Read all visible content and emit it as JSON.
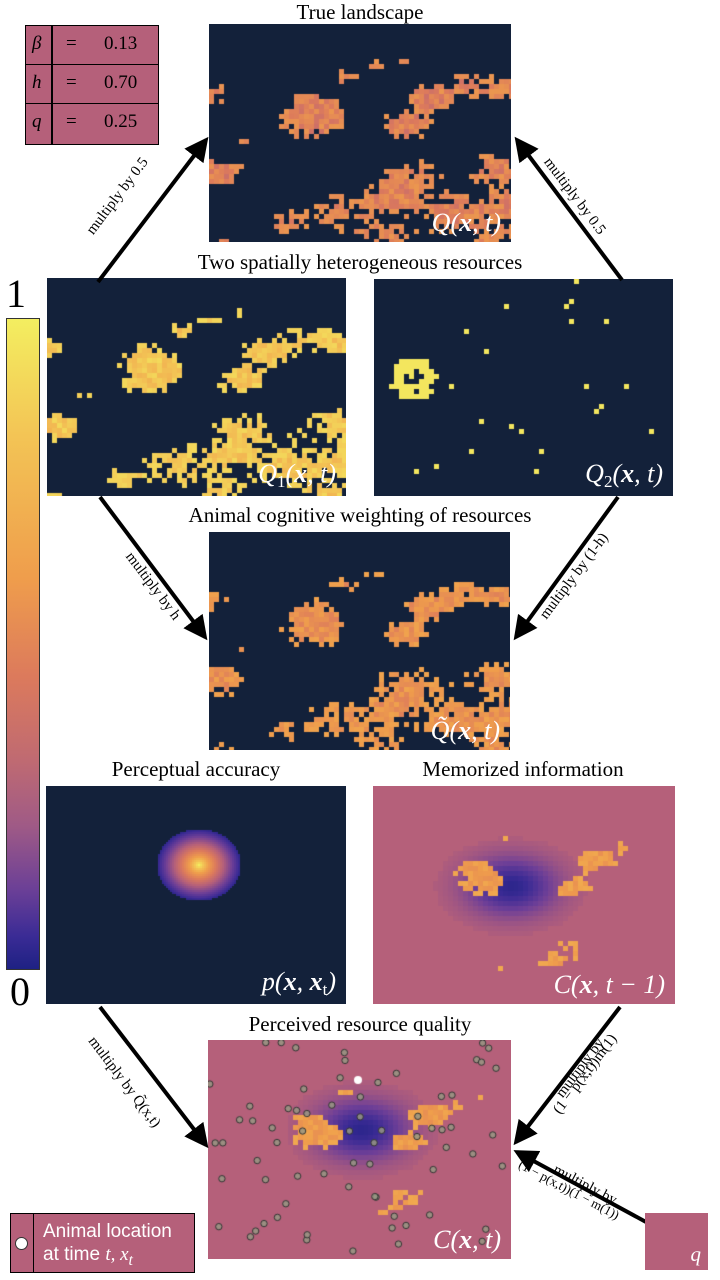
{
  "params": [
    {
      "symbol": "β",
      "eq": "=",
      "value": "0.13"
    },
    {
      "symbol": "h",
      "eq": "=",
      "value": "0.70"
    },
    {
      "symbol": "q",
      "eq": "=",
      "value": "0.25"
    }
  ],
  "titles": {
    "true_landscape": "True landscape",
    "two_resources": "Two spatially heterogeneous resources",
    "cognitive": "Animal cognitive weighting of resources",
    "perceptual": "Perceptual accuracy",
    "memorized": "Memorized information",
    "perceived": "Perceived resource quality"
  },
  "panel_labels": {
    "Q": {
      "main": "Q(",
      "bold": "x",
      "rest": ", t)"
    },
    "Q1": {
      "main": "Q",
      "sub": "1",
      "open": "(",
      "bold": "x",
      "rest": ", t)"
    },
    "Q2": {
      "main": "Q",
      "sub": "2",
      "open": "(",
      "bold": "x",
      "rest": ", t)"
    },
    "Qtilde": {
      "main": "Q̃(",
      "bold": "x",
      "rest": ", t)"
    },
    "p": {
      "main": "p(",
      "bold": "x",
      "mid": ", ",
      "bold2": "x",
      "sub": "t",
      "rest": ")"
    },
    "Cprev": {
      "main": "C(",
      "bold": "x",
      "rest": ", t − 1)"
    },
    "C": {
      "main": "C(",
      "bold": "x",
      "rest": ", t)"
    }
  },
  "arrow_labels": {
    "left_top": "multiply by 0.5",
    "right_top": "multiply by 0.5",
    "left_mid": "multiply by h",
    "right_mid": "multiply by (1-h)",
    "left_bottom": "multiply by Q̃(x,t)",
    "right_bottom_1": "multiply by",
    "right_bottom_2": "(1 − p(x,t))m(1)",
    "q_arrow_1": "multiply by",
    "q_arrow_2": "(1 − p(x,t))(1 − m(1))"
  },
  "colorbar": {
    "max_label": "1",
    "min_label": "0"
  },
  "legend": {
    "line1": "Animal location",
    "line2_text": "at time ",
    "line2_var": "t, x",
    "line2_sub": "t"
  },
  "q_box": {
    "label": "q"
  },
  "colors": {
    "background_dark": "#13213a",
    "hot": "#f3ee60",
    "orange": "#ef9d4c",
    "pink": "#b5607a",
    "blue": "#1e2183"
  }
}
